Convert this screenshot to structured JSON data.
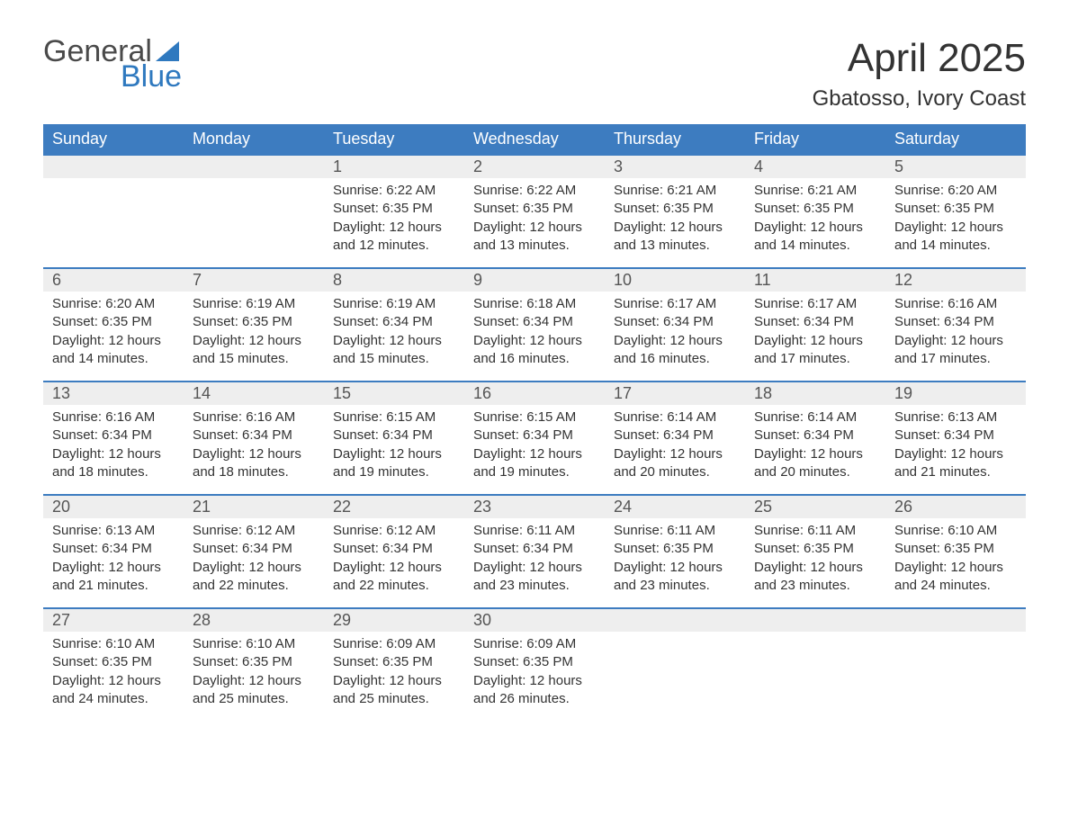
{
  "logo": {
    "word1": "General",
    "word2": "Blue",
    "sail_color": "#2f79bf"
  },
  "title": "April 2025",
  "location": "Gbatosso, Ivory Coast",
  "colors": {
    "header_bg": "#3d7cc0",
    "header_text": "#ffffff",
    "daynum_bg": "#eeeeee",
    "week_border": "#3d7cc0",
    "body_text": "#333333",
    "logo_gray": "#4a4a4a",
    "logo_blue": "#2f79bf",
    "page_bg": "#ffffff"
  },
  "day_labels": [
    "Sunday",
    "Monday",
    "Tuesday",
    "Wednesday",
    "Thursday",
    "Friday",
    "Saturday"
  ],
  "sunrise_label": "Sunrise:",
  "sunset_label": "Sunset:",
  "daylight_label": "Daylight:",
  "weeks": [
    [
      null,
      null,
      {
        "n": "1",
        "sunrise": "6:22 AM",
        "sunset": "6:35 PM",
        "daylight": "12 hours and 12 minutes."
      },
      {
        "n": "2",
        "sunrise": "6:22 AM",
        "sunset": "6:35 PM",
        "daylight": "12 hours and 13 minutes."
      },
      {
        "n": "3",
        "sunrise": "6:21 AM",
        "sunset": "6:35 PM",
        "daylight": "12 hours and 13 minutes."
      },
      {
        "n": "4",
        "sunrise": "6:21 AM",
        "sunset": "6:35 PM",
        "daylight": "12 hours and 14 minutes."
      },
      {
        "n": "5",
        "sunrise": "6:20 AM",
        "sunset": "6:35 PM",
        "daylight": "12 hours and 14 minutes."
      }
    ],
    [
      {
        "n": "6",
        "sunrise": "6:20 AM",
        "sunset": "6:35 PM",
        "daylight": "12 hours and 14 minutes."
      },
      {
        "n": "7",
        "sunrise": "6:19 AM",
        "sunset": "6:35 PM",
        "daylight": "12 hours and 15 minutes."
      },
      {
        "n": "8",
        "sunrise": "6:19 AM",
        "sunset": "6:34 PM",
        "daylight": "12 hours and 15 minutes."
      },
      {
        "n": "9",
        "sunrise": "6:18 AM",
        "sunset": "6:34 PM",
        "daylight": "12 hours and 16 minutes."
      },
      {
        "n": "10",
        "sunrise": "6:17 AM",
        "sunset": "6:34 PM",
        "daylight": "12 hours and 16 minutes."
      },
      {
        "n": "11",
        "sunrise": "6:17 AM",
        "sunset": "6:34 PM",
        "daylight": "12 hours and 17 minutes."
      },
      {
        "n": "12",
        "sunrise": "6:16 AM",
        "sunset": "6:34 PM",
        "daylight": "12 hours and 17 minutes."
      }
    ],
    [
      {
        "n": "13",
        "sunrise": "6:16 AM",
        "sunset": "6:34 PM",
        "daylight": "12 hours and 18 minutes."
      },
      {
        "n": "14",
        "sunrise": "6:16 AM",
        "sunset": "6:34 PM",
        "daylight": "12 hours and 18 minutes."
      },
      {
        "n": "15",
        "sunrise": "6:15 AM",
        "sunset": "6:34 PM",
        "daylight": "12 hours and 19 minutes."
      },
      {
        "n": "16",
        "sunrise": "6:15 AM",
        "sunset": "6:34 PM",
        "daylight": "12 hours and 19 minutes."
      },
      {
        "n": "17",
        "sunrise": "6:14 AM",
        "sunset": "6:34 PM",
        "daylight": "12 hours and 20 minutes."
      },
      {
        "n": "18",
        "sunrise": "6:14 AM",
        "sunset": "6:34 PM",
        "daylight": "12 hours and 20 minutes."
      },
      {
        "n": "19",
        "sunrise": "6:13 AM",
        "sunset": "6:34 PM",
        "daylight": "12 hours and 21 minutes."
      }
    ],
    [
      {
        "n": "20",
        "sunrise": "6:13 AM",
        "sunset": "6:34 PM",
        "daylight": "12 hours and 21 minutes."
      },
      {
        "n": "21",
        "sunrise": "6:12 AM",
        "sunset": "6:34 PM",
        "daylight": "12 hours and 22 minutes."
      },
      {
        "n": "22",
        "sunrise": "6:12 AM",
        "sunset": "6:34 PM",
        "daylight": "12 hours and 22 minutes."
      },
      {
        "n": "23",
        "sunrise": "6:11 AM",
        "sunset": "6:34 PM",
        "daylight": "12 hours and 23 minutes."
      },
      {
        "n": "24",
        "sunrise": "6:11 AM",
        "sunset": "6:35 PM",
        "daylight": "12 hours and 23 minutes."
      },
      {
        "n": "25",
        "sunrise": "6:11 AM",
        "sunset": "6:35 PM",
        "daylight": "12 hours and 23 minutes."
      },
      {
        "n": "26",
        "sunrise": "6:10 AM",
        "sunset": "6:35 PM",
        "daylight": "12 hours and 24 minutes."
      }
    ],
    [
      {
        "n": "27",
        "sunrise": "6:10 AM",
        "sunset": "6:35 PM",
        "daylight": "12 hours and 24 minutes."
      },
      {
        "n": "28",
        "sunrise": "6:10 AM",
        "sunset": "6:35 PM",
        "daylight": "12 hours and 25 minutes."
      },
      {
        "n": "29",
        "sunrise": "6:09 AM",
        "sunset": "6:35 PM",
        "daylight": "12 hours and 25 minutes."
      },
      {
        "n": "30",
        "sunrise": "6:09 AM",
        "sunset": "6:35 PM",
        "daylight": "12 hours and 26 minutes."
      },
      null,
      null,
      null
    ]
  ]
}
